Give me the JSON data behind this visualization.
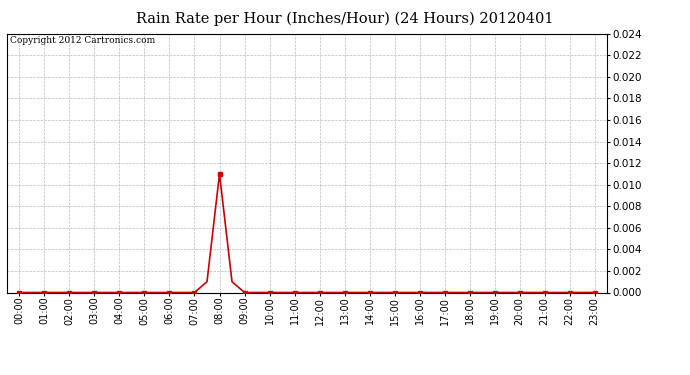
{
  "title": "Rain Rate per Hour (Inches/Hour) (24 Hours) 20120401",
  "copyright_text": "Copyright 2012 Cartronics.com",
  "background_color": "#ffffff",
  "plot_background_color": "#ffffff",
  "line_color": "#cc0000",
  "grid_color": "#bbbbbb",
  "hours": [
    0,
    1,
    2,
    3,
    4,
    5,
    6,
    7,
    8,
    9,
    10,
    11,
    12,
    13,
    14,
    15,
    16,
    17,
    18,
    19,
    20,
    21,
    22,
    23
  ],
  "x_detailed": [
    0,
    1,
    2,
    3,
    4,
    5,
    6,
    7,
    7.5,
    8,
    8.5,
    9,
    10,
    11,
    12,
    13,
    14,
    15,
    16,
    17,
    18,
    19,
    20,
    21,
    22,
    23
  ],
  "y_detailed": [
    0,
    0,
    0,
    0,
    0,
    0,
    0,
    0,
    0.001,
    0.011,
    0.001,
    0,
    0,
    0,
    0,
    0,
    0,
    0,
    0,
    0,
    0,
    0,
    0,
    0,
    0,
    0
  ],
  "ylim_min": 0.0,
  "ylim_max": 0.024,
  "ytick_step": 0.002,
  "tick_labels": [
    "00:00",
    "01:00",
    "02:00",
    "03:00",
    "04:00",
    "05:00",
    "06:00",
    "07:00",
    "08:00",
    "09:00",
    "10:00",
    "11:00",
    "12:00",
    "13:00",
    "14:00",
    "15:00",
    "16:00",
    "17:00",
    "18:00",
    "19:00",
    "20:00",
    "21:00",
    "22:00",
    "23:00"
  ],
  "marker_size": 3,
  "line_width": 1.2,
  "title_fontsize": 10.5,
  "copyright_fontsize": 6.5,
  "tick_fontsize": 7,
  "ytick_fontsize": 7.5
}
